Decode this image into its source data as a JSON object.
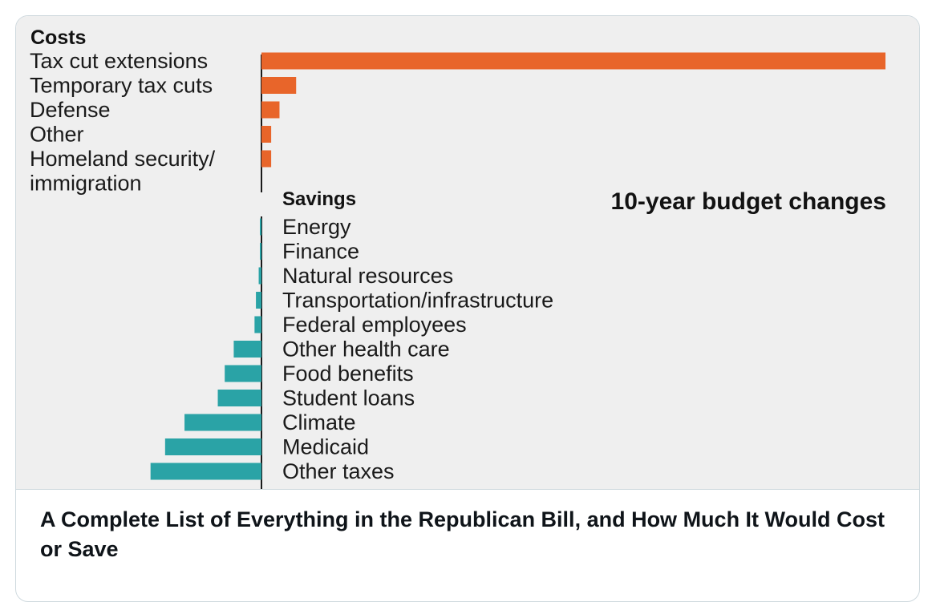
{
  "chart_data": {
    "type": "bar",
    "title": "10-year budget changes",
    "groups": [
      {
        "name": "Costs",
        "color": "#e8652a",
        "categories": [
          "Tax cut extensions",
          "Temporary tax cuts",
          "Defense",
          "Other",
          "Homeland security/ immigration"
        ],
        "values": [
          4500,
          250,
          130,
          70,
          70
        ]
      },
      {
        "name": "Savings",
        "color": "#2aa3a6",
        "categories": [
          "Energy",
          "Finance",
          "Natural resources",
          "Transportation/infrastructure",
          "Federal employees",
          "Other health care",
          "Food benefits",
          "Student loans",
          "Climate",
          "Medicaid",
          "Other taxes"
        ],
        "values": [
          -5,
          -5,
          -20,
          -40,
          -50,
          -200,
          -265,
          -315,
          -555,
          -695,
          -800
        ]
      }
    ],
    "grid": false,
    "legend": "none"
  },
  "caption": "A Complete List of Everything in the Republican Bill, and How Much It Would Cost or Save"
}
